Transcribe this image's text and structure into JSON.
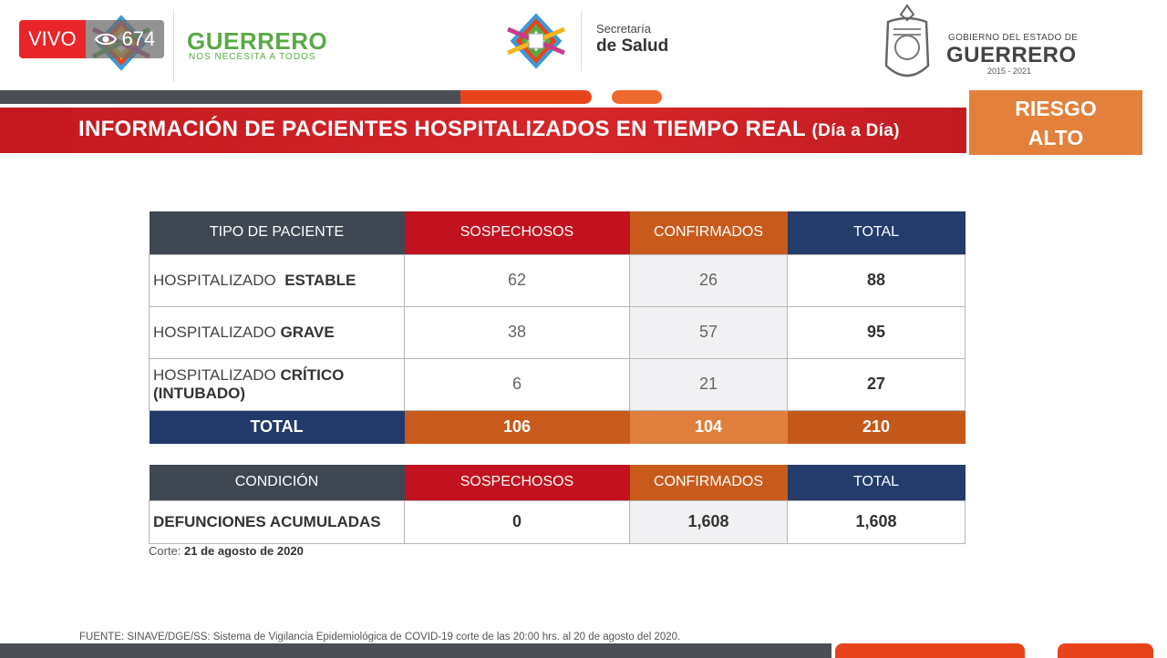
{
  "live": {
    "label": "VIVO",
    "views": "674"
  },
  "header": {
    "guerrero_title": "GUERRERO",
    "guerrero_slogan": "NOS NECESITA A TODOS",
    "secretaria_line1": "Secretaría",
    "secretaria_line2": "de Salud",
    "gobierno_line1": "GOBIERNO DEL ESTADO DE",
    "gobierno_line2": "GUERRERO",
    "gobierno_years": "2015 - 2021"
  },
  "banner": {
    "title": "INFORMACIÓN DE PACIENTES HOSPITALIZADOS EN TIEMPO REAL",
    "title_suffix": "(Día a Día)",
    "risk_line1": "RIESGO",
    "risk_line2": "ALTO"
  },
  "hosp_table": {
    "headers": [
      "TIPO DE PACIENTE",
      "SOSPECHOSOS",
      "CONFIRMADOS",
      "TOTAL"
    ],
    "rows": [
      {
        "label_prefix": "HOSPITALIZADO",
        "label_bold": "ESTABLE",
        "label_line2": "",
        "sospechosos": "62",
        "confirmados": "26",
        "total": "88"
      },
      {
        "label_prefix": "HOSPITALIZADO",
        "label_bold": "GRAVE",
        "label_line2": "",
        "sospechosos": "38",
        "confirmados": "57",
        "total": "95"
      },
      {
        "label_prefix": "HOSPITALIZADO",
        "label_bold": "CRÍTICO",
        "label_line2": "(INTUBADO)",
        "sospechosos": "6",
        "confirmados": "21",
        "total": "27"
      }
    ],
    "total_row": {
      "label": "TOTAL",
      "sospechosos": "106",
      "confirmados": "104",
      "total": "210"
    }
  },
  "death_table": {
    "headers": [
      "CONDICIÓN",
      "SOSPECHOSOS",
      "CONFIRMADOS",
      "TOTAL"
    ],
    "row": {
      "label": "DEFUNCIONES ACUMULADAS",
      "sospechosos": "0",
      "confirmados": "1,608",
      "total": "1,608"
    }
  },
  "corte": {
    "prefix": "Corte:",
    "date": "21 de agosto de 2020"
  },
  "fuente": "FUENTE: SINAVE/DGE/SS: Sistema de Vigilancia Epidemiológica de COVID-19 corte de las 20:00 hrs. al 20 de agosto del 2020.",
  "colors": {
    "red": "#c2121f",
    "orange": "#c85a1c",
    "navy": "#233c6b",
    "dark": "#3e4752",
    "green": "#5aa945",
    "risk": "#e3803c"
  }
}
